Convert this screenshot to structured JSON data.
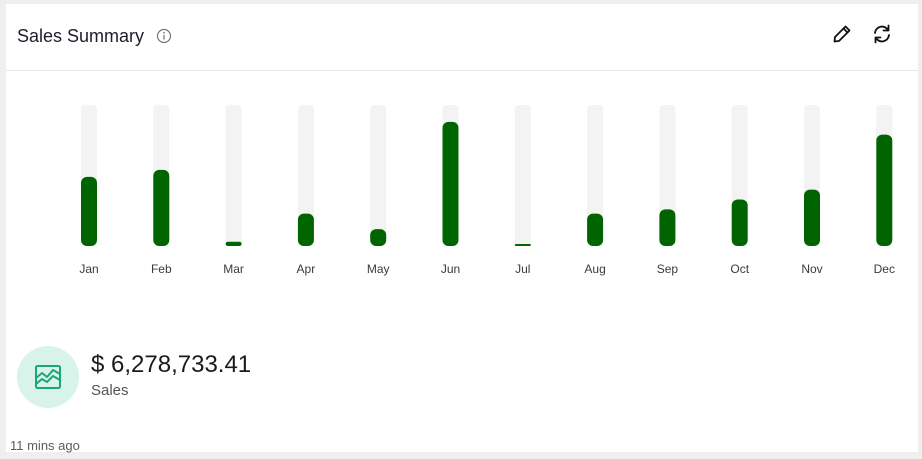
{
  "header": {
    "title": "Sales Summary",
    "info_icon": "info-circle-icon",
    "edit_icon": "pencil-icon",
    "refresh_icon": "refresh-icon"
  },
  "colors": {
    "bar": "#006400",
    "track": "#f3f3f3",
    "stat_icon_bg": "#d8f3ea",
    "stat_icon_fg": "#1aa67a"
  },
  "chart_data": {
    "type": "bar",
    "categories": [
      "Jan",
      "Feb",
      "Mar",
      "Apr",
      "May",
      "Jun",
      "Jul",
      "Aug",
      "Sep",
      "Oct",
      "Nov",
      "Dec"
    ],
    "values": [
      0.49,
      0.54,
      0.03,
      0.23,
      0.12,
      0.88,
      0.01,
      0.23,
      0.26,
      0.33,
      0.4,
      0.79
    ],
    "ylim": [
      0,
      1
    ],
    "title": "",
    "xlabel": "",
    "ylabel": "",
    "grid": false,
    "legend": "none"
  },
  "summary": {
    "value": "$ 6,278,733.41",
    "label": "Sales",
    "icon": "chart-area-icon"
  },
  "footer": {
    "updated": "11 mins ago"
  }
}
